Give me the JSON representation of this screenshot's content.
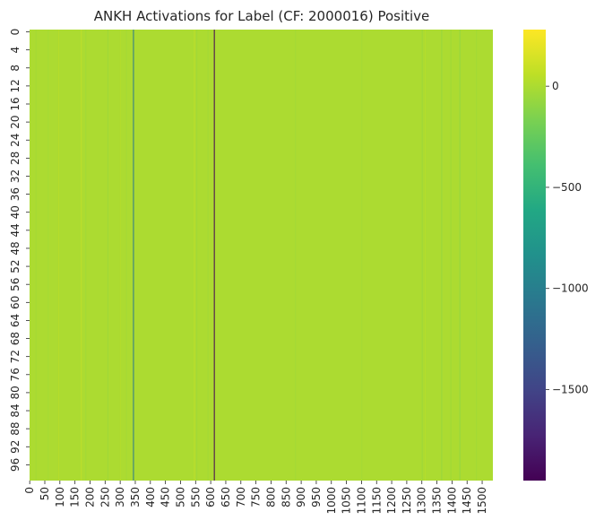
{
  "chart_data": {
    "type": "heatmap",
    "title": "ANKH Activations for Label (CF: 2000016) Positive",
    "xlabel": "",
    "ylabel": "",
    "rows": 100,
    "columns": 1536,
    "background_value": 0,
    "colormap": "viridis",
    "colorbar": {
      "vmin": -1950,
      "vmax": 280,
      "ticks": [
        0,
        -500,
        -1000,
        -1500
      ],
      "tick_labels": [
        "0",
        "−500",
        "−1000",
        "−1500"
      ]
    },
    "x_ticks": [
      0,
      50,
      100,
      150,
      200,
      250,
      300,
      350,
      400,
      450,
      500,
      550,
      600,
      650,
      700,
      750,
      800,
      850,
      900,
      950,
      1000,
      1050,
      1100,
      1150,
      1200,
      1250,
      1300,
      1350,
      1400,
      1450,
      1500
    ],
    "x_tick_labels": [
      "0",
      "50",
      "100",
      "150",
      "200",
      "250",
      "300",
      "350",
      "400",
      "450",
      "500",
      "550",
      "600",
      "650",
      "700",
      "750",
      "800",
      "850",
      "900",
      "950",
      "1000",
      "1050",
      "1100",
      "1150",
      "1200",
      "1250",
      "1300",
      "1350",
      "1400",
      "1450",
      "1500"
    ],
    "y_ticks": [
      0,
      4,
      8,
      12,
      16,
      20,
      24,
      28,
      32,
      36,
      40,
      44,
      48,
      52,
      56,
      60,
      64,
      68,
      72,
      76,
      80,
      84,
      88,
      92,
      96
    ],
    "y_tick_labels": [
      "0",
      "4",
      "8",
      "12",
      "16",
      "20",
      "24",
      "28",
      "32",
      "36",
      "40",
      "44",
      "48",
      "52",
      "56",
      "60",
      "64",
      "68",
      "72",
      "76",
      "80",
      "84",
      "88",
      "92",
      "96"
    ],
    "notable_columns": [
      {
        "column": 343,
        "value": -1050
      },
      {
        "column": 611,
        "value": -1950
      }
    ],
    "minor_column_variations": [
      {
        "column": 20,
        "value": -40
      },
      {
        "column": 60,
        "value": -30
      },
      {
        "column": 95,
        "value": 60
      },
      {
        "column": 170,
        "value": 120
      },
      {
        "column": 185,
        "value": -60
      },
      {
        "column": 258,
        "value": -80
      },
      {
        "column": 300,
        "value": 40
      },
      {
        "column": 320,
        "value": -50
      },
      {
        "column": 545,
        "value": 110
      },
      {
        "column": 553,
        "value": -70
      },
      {
        "column": 590,
        "value": -60
      },
      {
        "column": 880,
        "value": -50
      },
      {
        "column": 1100,
        "value": -40
      },
      {
        "column": 1300,
        "value": -90
      },
      {
        "column": 1310,
        "value": 60
      },
      {
        "column": 1365,
        "value": -120
      },
      {
        "column": 1395,
        "value": -80
      },
      {
        "column": 1425,
        "value": -150
      },
      {
        "column": 1480,
        "value": -50
      }
    ]
  }
}
